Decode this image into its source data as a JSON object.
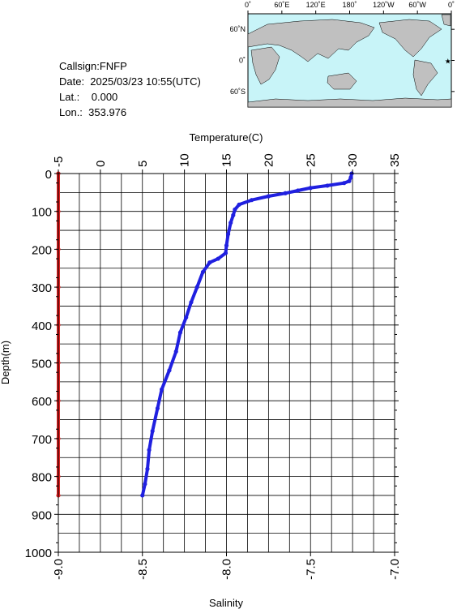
{
  "header": {
    "callsign": "Callsign:FNFP",
    "date": "Date:  2025/03/23 10:55(UTC)",
    "lat": "Lat.:    0.000",
    "lon": "Lon.:  353.976"
  },
  "map": {
    "top_labels": [
      "0˚",
      "60˚E",
      "120˚E",
      "180˚",
      "120˚W",
      "60˚W",
      "0˚"
    ],
    "side_labels": [
      "60˚N",
      "0˚",
      "60˚S"
    ],
    "ocean_color": "#c8f4f8",
    "land_color": "#c0c0c0",
    "marker_color": "#ff0000",
    "marker_lon": 353.976,
    "marker_lat": 0.0
  },
  "chart_data": {
    "type": "scatter",
    "title": "",
    "ylabel": "Depth(m)",
    "ylim": [
      0,
      1000
    ],
    "y_ticks": [
      "0",
      "100",
      "200",
      "300",
      "400",
      "500",
      "600",
      "700",
      "800",
      "900",
      "1000"
    ],
    "x_top": {
      "label": "Temperature(C)",
      "lim": [
        -5,
        35
      ],
      "ticks": [
        "-5",
        "0",
        "5",
        "10",
        "15",
        "20",
        "25",
        "30",
        "35"
      ]
    },
    "x_bottom": {
      "label": "Salinity",
      "lim": [
        -9.0,
        -7.0
      ],
      "ticks": [
        "-9.0",
        "-8.5",
        "-8.0",
        "-7.5",
        "-7.0"
      ]
    },
    "grid": true,
    "series": [
      {
        "axis": "temperature",
        "color": "#2020e0",
        "points": [
          [
            29.9,
            0
          ],
          [
            29.8,
            10
          ],
          [
            29.6,
            20
          ],
          [
            29.0,
            25
          ],
          [
            27.0,
            32
          ],
          [
            25.0,
            38
          ],
          [
            23.5,
            45
          ],
          [
            22.0,
            52
          ],
          [
            20.0,
            60
          ],
          [
            18.0,
            70
          ],
          [
            16.5,
            82
          ],
          [
            16.0,
            95
          ],
          [
            15.8,
            110
          ],
          [
            15.5,
            130
          ],
          [
            15.2,
            160
          ],
          [
            15.0,
            190
          ],
          [
            14.9,
            210
          ],
          [
            14.0,
            225
          ],
          [
            13.0,
            235
          ],
          [
            12.2,
            260
          ],
          [
            11.5,
            300
          ],
          [
            10.8,
            340
          ],
          [
            10.2,
            380
          ],
          [
            9.5,
            420
          ],
          [
            9.0,
            470
          ],
          [
            8.2,
            520
          ],
          [
            7.3,
            570
          ],
          [
            6.8,
            620
          ],
          [
            6.2,
            680
          ],
          [
            5.8,
            730
          ],
          [
            5.6,
            780
          ],
          [
            5.3,
            820
          ],
          [
            5.0,
            850
          ]
        ]
      },
      {
        "axis": "salinity",
        "color": "#e02020",
        "points": [
          [
            -9.0,
            0
          ],
          [
            -9.0,
            100
          ],
          [
            -9.0,
            200
          ],
          [
            -9.0,
            300
          ],
          [
            -9.0,
            400
          ],
          [
            -9.0,
            500
          ],
          [
            -9.0,
            600
          ],
          [
            -9.0,
            700
          ],
          [
            -9.0,
            800
          ],
          [
            -9.0,
            850
          ]
        ]
      }
    ]
  }
}
